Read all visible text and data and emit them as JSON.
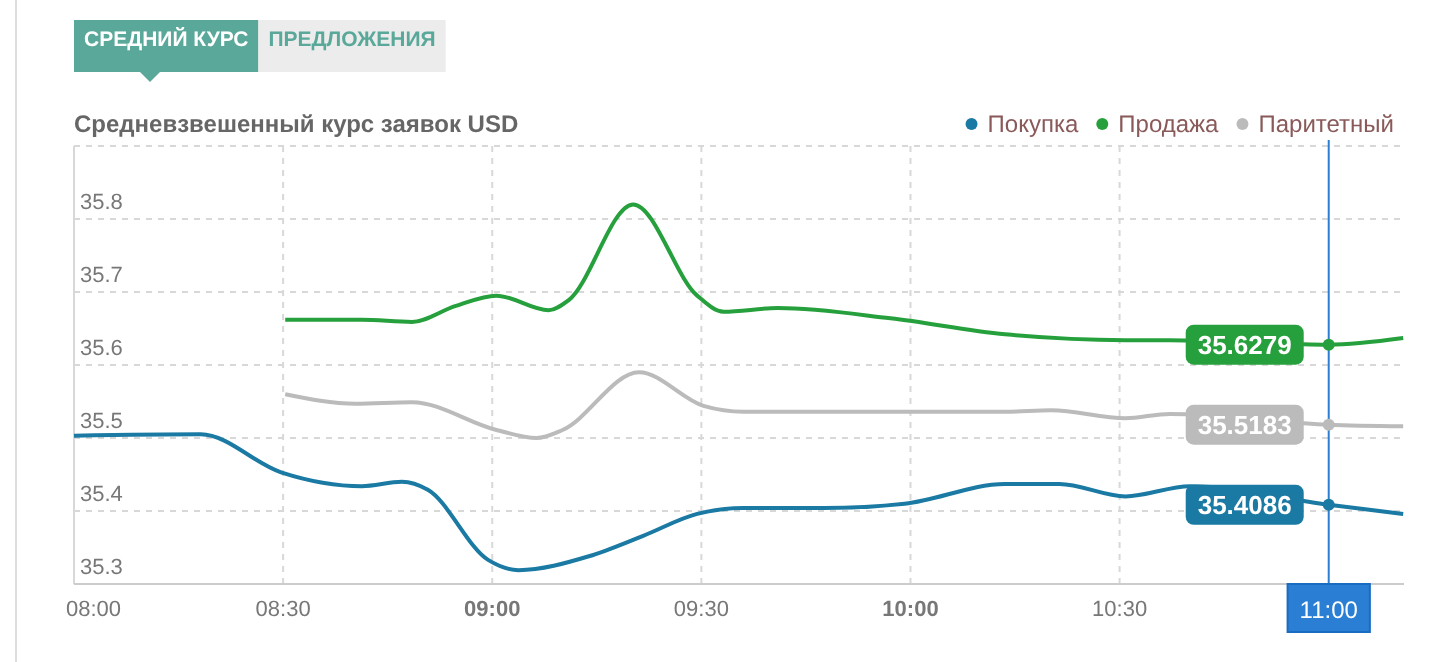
{
  "chart_data": {
    "type": "line",
    "title": "Средневзвешенный курс заявок USD",
    "annotations": [
      "СРЕДНИЙ КУРС",
      "ПРЕДЛОЖЕНИЯ"
    ],
    "series": [
      {
        "name": "Покупка",
        "color": "#1a7aa3",
        "x": [
          8.0,
          8.303,
          8.495,
          8.688,
          8.784,
          8.846,
          8.99,
          9.063,
          9.231,
          9.361,
          9.49,
          9.601,
          9.793,
          9.986,
          10.226,
          10.356,
          10.514,
          10.668,
          11.0,
          11.178
        ],
        "values": [
          35.503,
          35.505,
          35.453,
          35.434,
          35.44,
          35.429,
          35.333,
          35.319,
          35.338,
          35.366,
          35.396,
          35.404,
          35.404,
          35.41,
          35.437,
          35.437,
          35.42,
          35.434,
          35.4086,
          35.396
        ],
        "value_labels": [
          null,
          null,
          null,
          null,
          null,
          null,
          null,
          null,
          null,
          null,
          null,
          null,
          null,
          null,
          null,
          null,
          null,
          null,
          "35.4086",
          null
        ]
      },
      {
        "name": "Продажа",
        "color": "#26a03c",
        "x": [
          8.505,
          8.688,
          8.808,
          8.913,
          9.01,
          9.135,
          9.183,
          9.337,
          9.49,
          9.553,
          9.683,
          9.952,
          10.226,
          10.514,
          10.62,
          11.0,
          11.178
        ],
        "values": [
          35.662,
          35.662,
          35.659,
          35.681,
          35.695,
          35.675,
          35.689,
          35.82,
          35.695,
          35.673,
          35.678,
          35.664,
          35.642,
          35.634,
          35.634,
          35.6279,
          35.637
        ],
        "value_labels": [
          null,
          null,
          null,
          null,
          null,
          null,
          null,
          null,
          null,
          null,
          null,
          null,
          null,
          null,
          null,
          "35.6279",
          null
        ]
      },
      {
        "name": "Паритетный",
        "color": "#bbbbbb",
        "x": [
          8.505,
          8.673,
          8.808,
          9.01,
          9.106,
          9.168,
          9.351,
          9.505,
          9.601,
          9.875,
          10.226,
          10.337,
          10.514,
          10.62,
          11.0,
          11.178
        ],
        "values": [
          35.56,
          35.547,
          35.549,
          35.511,
          35.5,
          35.511,
          35.59,
          35.544,
          35.536,
          35.536,
          35.536,
          35.538,
          35.527,
          35.533,
          35.5183,
          35.516
        ],
        "value_labels": [
          null,
          null,
          null,
          null,
          null,
          null,
          null,
          null,
          null,
          null,
          null,
          null,
          null,
          null,
          "35.5183",
          null
        ]
      }
    ],
    "xlim": [
      8,
      11.18
    ],
    "xticks": [
      {
        "value": 8,
        "label": "08:00"
      },
      {
        "value": 8.5,
        "label": "08:30"
      },
      {
        "value": 9,
        "label": "09:00"
      },
      {
        "value": 9.5,
        "label": "09:30"
      },
      {
        "value": 10,
        "label": "10:00"
      },
      {
        "value": 10.5,
        "label": "10:30"
      }
    ],
    "ylim": [
      35.3,
      35.9
    ],
    "yticks": [
      35.3,
      35.4,
      35.5,
      35.6,
      35.7,
      35.8
    ],
    "ref_lines": [
      {
        "axis": "x",
        "value": 11,
        "label": "11:00",
        "color": "#2a7fd4"
      }
    ],
    "grid": true,
    "legend": "top right",
    "marker": "none",
    "line_style": "solid"
  }
}
